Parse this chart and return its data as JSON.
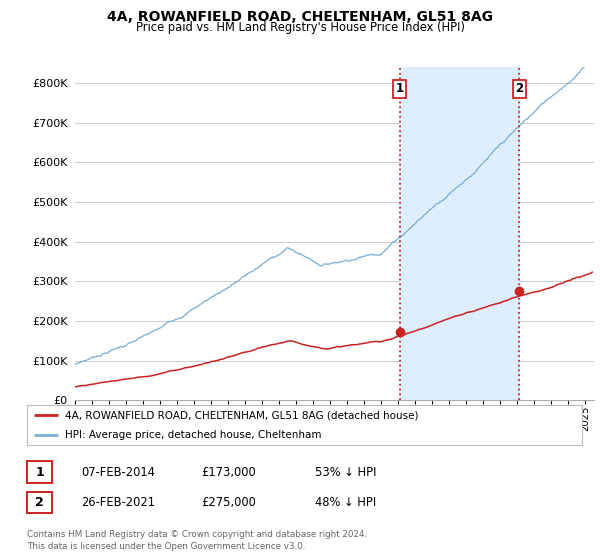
{
  "title": "4A, ROWANFIELD ROAD, CHELTENHAM, GL51 8AG",
  "subtitle": "Price paid vs. HM Land Registry's House Price Index (HPI)",
  "ytick_values": [
    0,
    100000,
    200000,
    300000,
    400000,
    500000,
    600000,
    700000,
    800000
  ],
  "ylim": [
    0,
    840000
  ],
  "xlim_start": 1995.0,
  "xlim_end": 2025.5,
  "hpi_color": "#7aadd4",
  "price_color": "#cc2222",
  "vline_color": "#cc2222",
  "shade_color": "#ddeeff",
  "marker1_x": 2014.08,
  "marker1_y": 173000,
  "marker2_x": 2021.12,
  "marker2_y": 275000,
  "legend_line1": "4A, ROWANFIELD ROAD, CHELTENHAM, GL51 8AG (detached house)",
  "legend_line2": "HPI: Average price, detached house, Cheltenham",
  "table_row1": [
    "1",
    "07-FEB-2014",
    "£173,000",
    "53% ↓ HPI"
  ],
  "table_row2": [
    "2",
    "26-FEB-2021",
    "£275,000",
    "48% ↓ HPI"
  ],
  "footnote": "Contains HM Land Registry data © Crown copyright and database right 2024.\nThis data is licensed under the Open Government Licence v3.0.",
  "background_color": "#ffffff",
  "grid_color": "#cccccc"
}
